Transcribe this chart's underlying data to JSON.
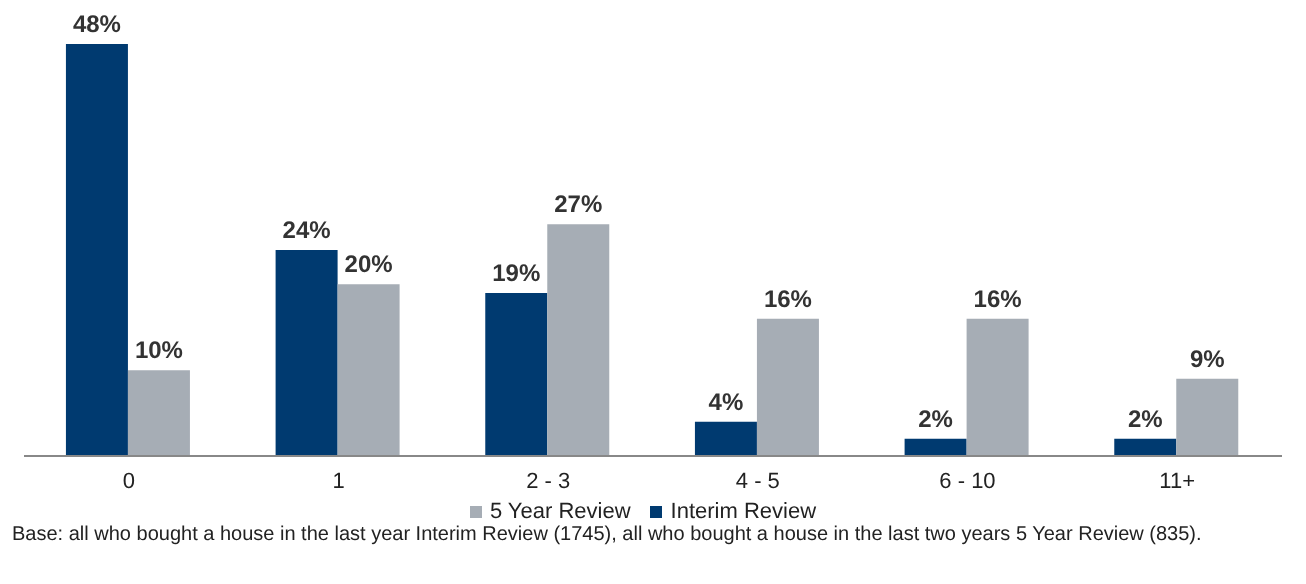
{
  "chart_data": {
    "type": "bar",
    "categories": [
      "0",
      "1",
      "2 - 3",
      "4 - 5",
      "6 - 10",
      "11+"
    ],
    "series": [
      {
        "name": "Interim Review",
        "color": "#003a70",
        "values": [
          48,
          24,
          19,
          4,
          2,
          2
        ],
        "value_labels": [
          "48%",
          "24%",
          "19%",
          "4%",
          "2%",
          "2%"
        ]
      },
      {
        "name": "5 Year Review",
        "color": "#a6adb5",
        "values": [
          10,
          20,
          27,
          16,
          16,
          9
        ],
        "value_labels": [
          "10%",
          "20%",
          "27%",
          "16%",
          "16%",
          "9%"
        ]
      }
    ],
    "legend": "bottom",
    "grid": false,
    "annotations": [
      "Base: all who bought a house in the last year Interim Review (1745), all who bought a house in the last two years 5 Year Review (835)."
    ]
  }
}
